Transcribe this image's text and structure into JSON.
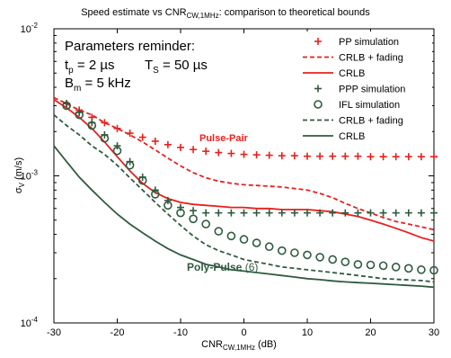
{
  "chart_data": {
    "type": "line",
    "title": "Speed estimate vs CNR",
    "title_sub": "CW,1MHz",
    "title_tail": ": comparison to theoretical bounds",
    "xlabel": "CNR",
    "xlabel_sub": "CW,1MHz",
    "xlabel_unit": " (dB)",
    "ylabel": "σ",
    "ylabel_sub": "V",
    "ylabel_unit": " (m/s)",
    "xlim": [
      -30,
      30
    ],
    "ylim": [
      0.0001,
      0.01
    ],
    "yscale": "log",
    "x_ticks": [
      -30,
      -20,
      -10,
      0,
      10,
      20,
      30
    ],
    "x_tick_labels": [
      "-30",
      "-20",
      "-10",
      "0",
      "10",
      "20",
      "30"
    ],
    "y_tick_labels": [
      {
        "value": 0.01,
        "base": "10",
        "exp": "-2"
      },
      {
        "value": 0.001,
        "base": "10",
        "exp": "-3"
      },
      {
        "value": 0.0001,
        "base": "10",
        "exp": "-4"
      }
    ],
    "grid": false,
    "params": {
      "heading": "Parameters reminder:",
      "tp_sym": "t",
      "tp_sub": "p",
      "tp_val": " = 2 µs",
      "ts_sym": "T",
      "ts_sub": "S",
      "ts_val": " = 50 µs",
      "bm_sym": "B",
      "bm_sub": "m",
      "bm_val": " = 5 kHz"
    },
    "annotations": {
      "pulse_pair": "Pulse-Pair",
      "poly_pulse": "Poly-Pulse",
      "poly_pulse_n": "(6)"
    },
    "legend_position": "top-right",
    "colors": {
      "red": "#e8201c",
      "green": "#2f5b3f",
      "text": "#000000"
    },
    "series": [
      {
        "name": "PP simulation",
        "kind": "plus",
        "color": "#e8201c",
        "x": [
          -28,
          -26,
          -24,
          -22,
          -20,
          -18,
          -16,
          -14,
          -12,
          -10,
          -8,
          -6,
          -4,
          -2,
          0,
          2,
          4,
          6,
          8,
          10,
          12,
          14,
          16,
          18,
          20,
          22,
          24,
          26,
          28,
          30
        ],
        "y": [
          0.0031,
          0.0028,
          0.0025,
          0.0023,
          0.0021,
          0.00195,
          0.00183,
          0.00172,
          0.00163,
          0.00156,
          0.00151,
          0.00147,
          0.00144,
          0.00142,
          0.0014,
          0.00139,
          0.00138,
          0.00137,
          0.00137,
          0.00136,
          0.00136,
          0.00136,
          0.00136,
          0.00136,
          0.00135,
          0.00135,
          0.00135,
          0.00135,
          0.00135,
          0.00135
        ]
      },
      {
        "name": "CRLB + fading",
        "kind": "dashed",
        "color": "#e8201c",
        "x": [
          -30,
          -28,
          -26,
          -24,
          -22,
          -20,
          -18,
          -16,
          -14,
          -12,
          -10,
          -8,
          -6,
          -4,
          -2,
          0,
          2,
          4,
          6,
          8,
          10,
          12,
          14,
          16,
          18,
          20,
          22,
          24,
          26,
          28,
          30
        ],
        "y": [
          0.0034,
          0.0031,
          0.0028,
          0.0026,
          0.0023,
          0.0021,
          0.0019,
          0.0017,
          0.0015,
          0.00132,
          0.00117,
          0.00105,
          0.00097,
          0.00092,
          0.00089,
          0.00087,
          0.00086,
          0.00085,
          0.00084,
          0.00082,
          0.0008,
          0.00076,
          0.00071,
          0.00065,
          0.0006,
          0.00056,
          0.00052,
          0.00049,
          0.00047,
          0.00045,
          0.00043
        ]
      },
      {
        "name": "CRLB",
        "kind": "solid",
        "color": "#e8201c",
        "x": [
          -30,
          -28,
          -26,
          -24,
          -22,
          -20,
          -18,
          -16,
          -14,
          -12,
          -10,
          -8,
          -6,
          -4,
          -2,
          0,
          2,
          4,
          6,
          8,
          10,
          12,
          14,
          16,
          18,
          20,
          22,
          24,
          26,
          28,
          30
        ],
        "y": [
          0.0033,
          0.0029,
          0.0025,
          0.0021,
          0.0017,
          0.00135,
          0.00108,
          0.00089,
          0.00077,
          0.0007,
          0.00066,
          0.00064,
          0.00063,
          0.00062,
          0.00061,
          0.00061,
          0.0006,
          0.0006,
          0.00059,
          0.00059,
          0.00059,
          0.00058,
          0.00057,
          0.00055,
          0.00053,
          0.0005,
          0.00047,
          0.00044,
          0.00041,
          0.00038,
          0.00036
        ]
      },
      {
        "name": "PPP simulation",
        "kind": "plus",
        "color": "#2f5b3f",
        "x": [
          -28,
          -26,
          -24,
          -22,
          -20,
          -18,
          -16,
          -14,
          -12,
          -10,
          -8,
          -6,
          -4,
          -2,
          0,
          2,
          4,
          6,
          8,
          10,
          12,
          14,
          16,
          18,
          20,
          22,
          24,
          26,
          28,
          30
        ],
        "y": [
          0.0031,
          0.0027,
          0.0023,
          0.0019,
          0.0016,
          0.00125,
          0.00098,
          0.0008,
          0.00068,
          0.00061,
          0.00058,
          0.00056,
          0.00056,
          0.00056,
          0.00056,
          0.00056,
          0.00056,
          0.00056,
          0.00056,
          0.00056,
          0.00056,
          0.00056,
          0.00056,
          0.00056,
          0.00056,
          0.00056,
          0.00056,
          0.00056,
          0.00056,
          0.00056
        ]
      },
      {
        "name": "IFL simulation",
        "kind": "circle",
        "color": "#2f5b3f",
        "x": [
          -28,
          -26,
          -24,
          -22,
          -20,
          -18,
          -16,
          -14,
          -12,
          -10,
          -8,
          -6,
          -4,
          -2,
          0,
          2,
          4,
          6,
          8,
          10,
          12,
          14,
          16,
          18,
          20,
          22,
          24,
          26,
          28,
          30
        ],
        "y": [
          0.003,
          0.0026,
          0.0022,
          0.0018,
          0.00148,
          0.00118,
          0.00093,
          0.00075,
          0.00063,
          0.00056,
          0.00051,
          0.00047,
          0.00042,
          0.00039,
          0.00037,
          0.00035,
          0.00033,
          0.00031,
          0.0003,
          0.00029,
          0.00028,
          0.00027,
          0.00026,
          0.00025,
          0.000248,
          0.000245,
          0.00024,
          0.000235,
          0.00023,
          0.000228
        ]
      },
      {
        "name": "CRLB + fading",
        "kind": "dashed",
        "color": "#2f5b3f",
        "x": [
          -30,
          -28,
          -26,
          -24,
          -22,
          -20,
          -18,
          -16,
          -14,
          -12,
          -10,
          -8,
          -6,
          -4,
          -2,
          0,
          2,
          4,
          6,
          8,
          10,
          12,
          14,
          16,
          18,
          20,
          22,
          24,
          26,
          28,
          30
        ],
        "y": [
          0.0026,
          0.0022,
          0.0019,
          0.0016,
          0.0014,
          0.00118,
          0.00097,
          0.0008,
          0.00066,
          0.00055,
          0.00046,
          0.00039,
          0.00034,
          0.00031,
          0.00029,
          0.00027,
          0.00026,
          0.00025,
          0.00024,
          0.000235,
          0.00023,
          0.000225,
          0.00022,
          0.000215,
          0.00021,
          0.000205,
          0.0002,
          0.000198,
          0.000196,
          0.000194,
          0.00019
        ]
      },
      {
        "name": "CRLB",
        "kind": "solid",
        "color": "#2f5b3f",
        "x": [
          -30,
          -28,
          -26,
          -24,
          -22,
          -20,
          -18,
          -16,
          -14,
          -12,
          -10,
          -8,
          -6,
          -4,
          -2,
          0,
          2,
          4,
          6,
          8,
          10,
          12,
          14,
          16,
          18,
          20,
          22,
          24,
          26,
          28,
          30
        ],
        "y": [
          0.0016,
          0.00125,
          0.00098,
          0.0008,
          0.00066,
          0.00055,
          0.00047,
          0.00041,
          0.00036,
          0.00032,
          0.00029,
          0.00027,
          0.00025,
          0.00024,
          0.00023,
          0.000225,
          0.00022,
          0.000215,
          0.00021,
          0.000205,
          0.0002,
          0.000197,
          0.000193,
          0.00019,
          0.000188,
          0.000186,
          0.000184,
          0.000182,
          0.00018,
          0.000178,
          0.000175
        ]
      }
    ]
  }
}
